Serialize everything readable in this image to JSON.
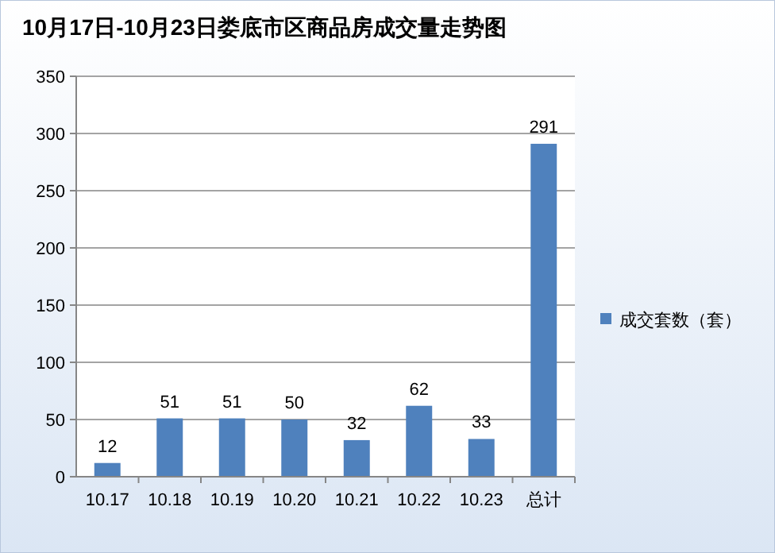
{
  "chart_data": {
    "type": "bar",
    "title": "10月17日-10月23日娄底市区商品房成交量走势图",
    "categories": [
      "10.17",
      "10.18",
      "10.19",
      "10.20",
      "10.21",
      "10.22",
      "10.23",
      "总计"
    ],
    "series": [
      {
        "name": "成交套数（套）",
        "color": "#4f81bd",
        "values": [
          12,
          51,
          51,
          50,
          32,
          62,
          33,
          291
        ]
      }
    ],
    "ylim": [
      0,
      350
    ],
    "yticks": [
      0,
      50,
      100,
      150,
      200,
      250,
      300,
      350
    ],
    "grid": "y",
    "legend": "right",
    "data_labels": true
  }
}
